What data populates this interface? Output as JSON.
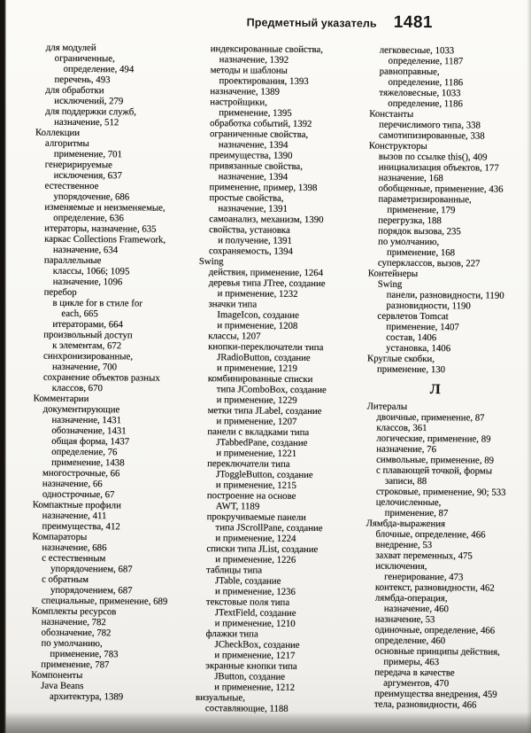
{
  "page": {
    "running_title": "Предметный указатель",
    "page_number": "1481"
  },
  "colors": {
    "paper": "#f7f6f2",
    "ink": "#1b1712",
    "scanner_edge": "#15120e"
  },
  "index": {
    "columns": [
      {
        "lines": [
          [
            1,
            "для модулей"
          ],
          [
            2,
            "ограниченные,"
          ],
          [
            3,
            "определение, 494"
          ],
          [
            2,
            "перечень, 493"
          ],
          [
            1,
            "для обработки"
          ],
          [
            2,
            "исключений, 279"
          ],
          [
            1,
            "для поддержки служб,"
          ],
          [
            2,
            "назначение, 512"
          ],
          [
            0,
            "Коллекции"
          ],
          [
            1,
            "алгоритмы"
          ],
          [
            2,
            "применение, 701"
          ],
          [
            1,
            "генеририруемые"
          ],
          [
            2,
            "исключения, 637"
          ],
          [
            1,
            "естественное"
          ],
          [
            2,
            "упорядочение, 686"
          ],
          [
            1,
            "изменяемые и неизменяемые,"
          ],
          [
            2,
            "определение, 636"
          ],
          [
            1,
            "итераторы, назначение, 635"
          ],
          [
            1,
            "каркас Collections Framework,"
          ],
          [
            2,
            "назначение, 634"
          ],
          [
            1,
            "параллельные"
          ],
          [
            2,
            "классы, 1066; 1095"
          ],
          [
            2,
            "назначение, 1096"
          ],
          [
            1,
            "перебор"
          ],
          [
            2,
            "в цикле for в стиле for"
          ],
          [
            3,
            "each, 665"
          ],
          [
            2,
            "итераторами, 664"
          ],
          [
            1,
            "произвольный доступ"
          ],
          [
            2,
            "к элементам, 672"
          ],
          [
            1,
            "синхронизированные,"
          ],
          [
            2,
            "назначение, 700"
          ],
          [
            1,
            "сохранение объектов разных"
          ],
          [
            2,
            "классов, 670"
          ],
          [
            0,
            "Комментарии"
          ],
          [
            1,
            "документирующие"
          ],
          [
            2,
            "назначение, 1431"
          ],
          [
            2,
            "обозначение, 1431"
          ],
          [
            2,
            "общая форма, 1437"
          ],
          [
            2,
            "определение, 76"
          ],
          [
            2,
            "применение, 1438"
          ],
          [
            1,
            "многострочные, 66"
          ],
          [
            1,
            "назначение, 66"
          ],
          [
            1,
            "однострочные, 67"
          ],
          [
            0,
            "Компактные профили"
          ],
          [
            1,
            "назначение, 411"
          ],
          [
            1,
            "преимущества, 412"
          ],
          [
            0,
            "Компараторы"
          ],
          [
            1,
            "назначение, 686"
          ],
          [
            1,
            "с естественным"
          ],
          [
            2,
            "упорядочением, 687"
          ],
          [
            1,
            "с обратным"
          ],
          [
            2,
            "упорядочением, 687"
          ],
          [
            1,
            "специальные, применение, 689"
          ],
          [
            0,
            "Комплекты ресурсов"
          ],
          [
            1,
            "назначение, 782"
          ],
          [
            1,
            "обозначение, 782"
          ],
          [
            1,
            "по умолчанию,"
          ],
          [
            2,
            "применение, 783"
          ],
          [
            1,
            "применение, 787"
          ],
          [
            0,
            "Компоненты"
          ],
          [
            1,
            "Java Beans"
          ],
          [
            2,
            "архитектура, 1389"
          ]
        ]
      },
      {
        "lines": [
          [
            1,
            "индексированные свойства,"
          ],
          [
            2,
            "назначение, 1392"
          ],
          [
            1,
            "методы и шаблоны"
          ],
          [
            2,
            "проектирования, 1393"
          ],
          [
            1,
            "назначение, 1389"
          ],
          [
            1,
            "настройщики,"
          ],
          [
            2,
            "применение, 1395"
          ],
          [
            1,
            "обработка событий, 1392"
          ],
          [
            1,
            "ограниченные свойства,"
          ],
          [
            2,
            "назначение, 1394"
          ],
          [
            1,
            "преимущества, 1390"
          ],
          [
            1,
            "привязанные свойства,"
          ],
          [
            2,
            "назначение, 1394"
          ],
          [
            1,
            "применение, пример, 1398"
          ],
          [
            1,
            "простые свойства,"
          ],
          [
            2,
            "назначение, 1391"
          ],
          [
            1,
            "самоанализ, механизм, 1390"
          ],
          [
            1,
            "свойства, установка"
          ],
          [
            2,
            "и получение, 1391"
          ],
          [
            1,
            "сохраняемость, 1394"
          ],
          [
            0,
            "Swing"
          ],
          [
            1,
            "действия, применение, 1264"
          ],
          [
            1,
            "деревья типа JTree, создание"
          ],
          [
            2,
            "и применение, 1232"
          ],
          [
            1,
            "значки типа"
          ],
          [
            2,
            "ImageIcon, создание"
          ],
          [
            2,
            "и применение, 1208"
          ],
          [
            1,
            "классы, 1207"
          ],
          [
            1,
            "кнопки-переключатели типа"
          ],
          [
            2,
            "JRadioButton, создание"
          ],
          [
            2,
            "и применение, 1219"
          ],
          [
            1,
            "комбинированные списки"
          ],
          [
            2,
            "типа JComboBox, создание"
          ],
          [
            2,
            "и применение, 1229"
          ],
          [
            1,
            "метки типа JLabel, создание"
          ],
          [
            2,
            "и применение, 1207"
          ],
          [
            1,
            "панели с вкладками типа"
          ],
          [
            2,
            "JTabbedPane, создание"
          ],
          [
            2,
            "и применение, 1221"
          ],
          [
            1,
            "переключатели типа"
          ],
          [
            2,
            "JToggleButton, создание"
          ],
          [
            2,
            "и применение, 1215"
          ],
          [
            1,
            "построение на основе"
          ],
          [
            2,
            "AWT, 1189"
          ],
          [
            1,
            "прокручиваемые панели"
          ],
          [
            2,
            "типа JScrollPane, создание"
          ],
          [
            2,
            "и применение, 1224"
          ],
          [
            1,
            "списки типа JList, создание"
          ],
          [
            2,
            "и применение, 1226"
          ],
          [
            1,
            "таблицы типа"
          ],
          [
            2,
            "JTable, создание"
          ],
          [
            2,
            "и применение, 1236"
          ],
          [
            1,
            "текстовые поля типа"
          ],
          [
            2,
            "JTextField, создание"
          ],
          [
            2,
            "и применение, 1210"
          ],
          [
            1,
            "флажки типа"
          ],
          [
            2,
            "JCheckBox, создание"
          ],
          [
            2,
            "и применение, 1217"
          ],
          [
            1,
            "экранные кнопки типа"
          ],
          [
            2,
            "JButton, создание"
          ],
          [
            2,
            "и применение, 1212"
          ],
          [
            0,
            "визуальные,"
          ],
          [
            1,
            "составляющие, 1188"
          ]
        ]
      },
      {
        "lines": [
          [
            1,
            "легковесные, 1033"
          ],
          [
            2,
            "определение, 1187"
          ],
          [
            1,
            "равноправные,"
          ],
          [
            2,
            "определение, 1186"
          ],
          [
            1,
            "тяжеловесные, 1033"
          ],
          [
            2,
            "определение, 1186"
          ],
          [
            0,
            "Константы"
          ],
          [
            1,
            "перечислимого типа, 338"
          ],
          [
            1,
            "самотипизированные, 338"
          ],
          [
            0,
            "Конструкторы"
          ],
          [
            1,
            "вызов по ссылке this(), 409"
          ],
          [
            1,
            "инициализация объектов, 177"
          ],
          [
            1,
            "назначение, 168"
          ],
          [
            1,
            "обобщенные, применение, 436"
          ],
          [
            1,
            "параметризированные,"
          ],
          [
            2,
            "применение, 179"
          ],
          [
            1,
            "перегрузка, 188"
          ],
          [
            1,
            "порядок вызова, 235"
          ],
          [
            1,
            "по умолчанию,"
          ],
          [
            2,
            "применение, 168"
          ],
          [
            1,
            "суперклассов, вызов, 227"
          ],
          [
            0,
            "Контейнеры"
          ],
          [
            1,
            "Swing"
          ],
          [
            2,
            "панели, разновидности, 1190"
          ],
          [
            2,
            "разновидности, 1190"
          ],
          [
            1,
            "сервлетов Tomcat"
          ],
          [
            2,
            "применение, 1407"
          ],
          [
            2,
            "состав, 1406"
          ],
          [
            2,
            "установка, 1406"
          ],
          [
            0,
            "Круглые скобки,"
          ],
          [
            1,
            "применение, 130"
          ],
          {
            "section": "Л"
          },
          [
            0,
            "Литералы"
          ],
          [
            1,
            "двоичные, применение, 87"
          ],
          [
            1,
            "классов, 361"
          ],
          [
            1,
            "логические, применение, 89"
          ],
          [
            1,
            "назначение, 76"
          ],
          [
            1,
            "символьные, применение, 89"
          ],
          [
            1,
            "с плавающей точкой, формы"
          ],
          [
            2,
            "записи, 88"
          ],
          [
            1,
            "строковые, применение, 90; 533"
          ],
          [
            1,
            "целочисленные,"
          ],
          [
            2,
            "применение, 87"
          ],
          [
            0,
            "Лямбда-выражения"
          ],
          [
            1,
            "блочные, определение, 466"
          ],
          [
            1,
            "внедрение, 53"
          ],
          [
            1,
            "захват переменных, 475"
          ],
          [
            1,
            "исключения,"
          ],
          [
            2,
            "генерирование, 473"
          ],
          [
            1,
            "контекст, разновидности, 462"
          ],
          [
            1,
            "лямбда-операция,"
          ],
          [
            2,
            "назначение, 460"
          ],
          [
            1,
            "назначение, 53"
          ],
          [
            1,
            "одиночные, определение, 466"
          ],
          [
            1,
            "определение, 460"
          ],
          [
            1,
            "основные принципы действия,"
          ],
          [
            2,
            "примеры, 463"
          ],
          [
            1,
            "передача в качестве"
          ],
          [
            2,
            "аргументов, 470"
          ],
          [
            1,
            "преимущества внедрения, 459"
          ],
          [
            1,
            "тела, разновидности, 466"
          ]
        ]
      }
    ]
  }
}
